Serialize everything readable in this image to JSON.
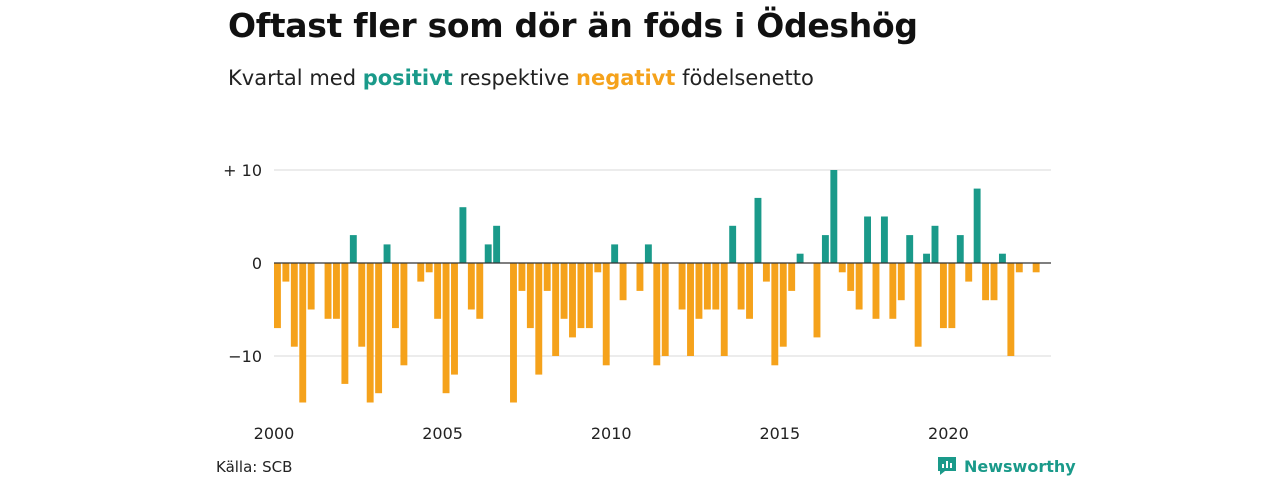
{
  "title": "Oftast fler som dör än föds i Ödeshög",
  "subtitle": {
    "prefix": "Kvartal med ",
    "positive": "positivt",
    "middle": " respektive ",
    "negative": "negativt",
    "suffix": " födelsenetto"
  },
  "source": "Källa: SCB",
  "brand": "Newsworthy",
  "colors": {
    "positive": "#1a9a8a",
    "negative": "#f5a21b",
    "grid": "#d9d9d9",
    "zero": "#333333"
  },
  "chart_data": {
    "type": "bar",
    "x_start": "2000 Q1",
    "x_ticks": [
      "2000",
      "2005",
      "2010",
      "2015",
      "2020"
    ],
    "y_ticks": [
      "+ 10",
      "0",
      "−10"
    ],
    "y_tick_values": [
      10,
      0,
      -10
    ],
    "ylim": [
      -15,
      10
    ],
    "grid": true,
    "values": [
      -7,
      -2,
      -9,
      -15,
      -5,
      0,
      -6,
      -6,
      -13,
      3,
      -9,
      -15,
      -14,
      2,
      -7,
      -11,
      0,
      -2,
      -1,
      -6,
      -14,
      -12,
      6,
      -5,
      -6,
      2,
      4,
      0,
      -15,
      -3,
      -7,
      -12,
      -3,
      -10,
      -6,
      -8,
      -7,
      -7,
      -1,
      -11,
      2,
      -4,
      0,
      -3,
      2,
      -11,
      -10,
      0,
      -5,
      -10,
      -6,
      -5,
      -5,
      -10,
      4,
      -5,
      -6,
      7,
      -2,
      -11,
      -9,
      -3,
      1,
      0,
      -8,
      3,
      10,
      -1,
      -3,
      -5,
      5,
      -6,
      5,
      -6,
      -4,
      3,
      -9,
      1,
      4,
      -7,
      -7,
      3,
      -2,
      8,
      -4,
      -4,
      1,
      -10,
      -1,
      0,
      -1
    ]
  }
}
